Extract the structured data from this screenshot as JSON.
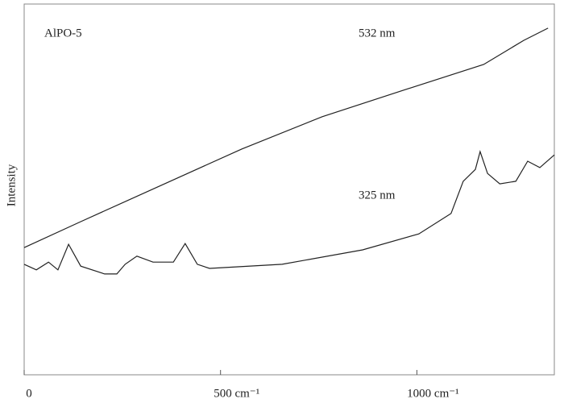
{
  "chart_data": {
    "type": "line",
    "y_label": "Intensity",
    "annotations": [
      "AlPO-5"
    ],
    "xlim": [
      0,
      1350
    ],
    "xticks": [
      0,
      {
        "value": 500,
        "label": "500 cm⁻¹"
      },
      {
        "value": 1000,
        "label": "1000 cm⁻¹"
      }
    ],
    "ylim": [
      0,
      100
    ],
    "grid": false,
    "series": [
      {
        "name": "532 nm",
        "color": "#222222",
        "x": [
          0,
          144,
          349,
          554,
          759,
          964,
          1170,
          1272,
          1334
        ],
        "values": [
          34.3,
          41.3,
          51.1,
          60.9,
          69.6,
          76.7,
          83.7,
          90.2,
          93.5
        ]
      },
      {
        "name": "325 nm",
        "color": "#222222",
        "x": [
          0,
          31,
          62,
          86,
          113,
          144,
          205,
          236,
          257,
          287,
          328,
          380,
          410,
          441,
          472,
          657,
          862,
          1005,
          1087,
          1118,
          1149,
          1161,
          1180,
          1211,
          1252,
          1282,
          1313,
          1350
        ],
        "values": [
          29.8,
          28.3,
          30.4,
          28.3,
          35.2,
          29.3,
          27.2,
          27.2,
          29.8,
          32.0,
          30.4,
          30.4,
          35.4,
          29.8,
          28.7,
          29.8,
          33.7,
          38.0,
          43.5,
          52.2,
          55.4,
          60.2,
          54.3,
          51.5,
          52.2,
          57.6,
          55.9,
          59.3
        ]
      }
    ]
  }
}
